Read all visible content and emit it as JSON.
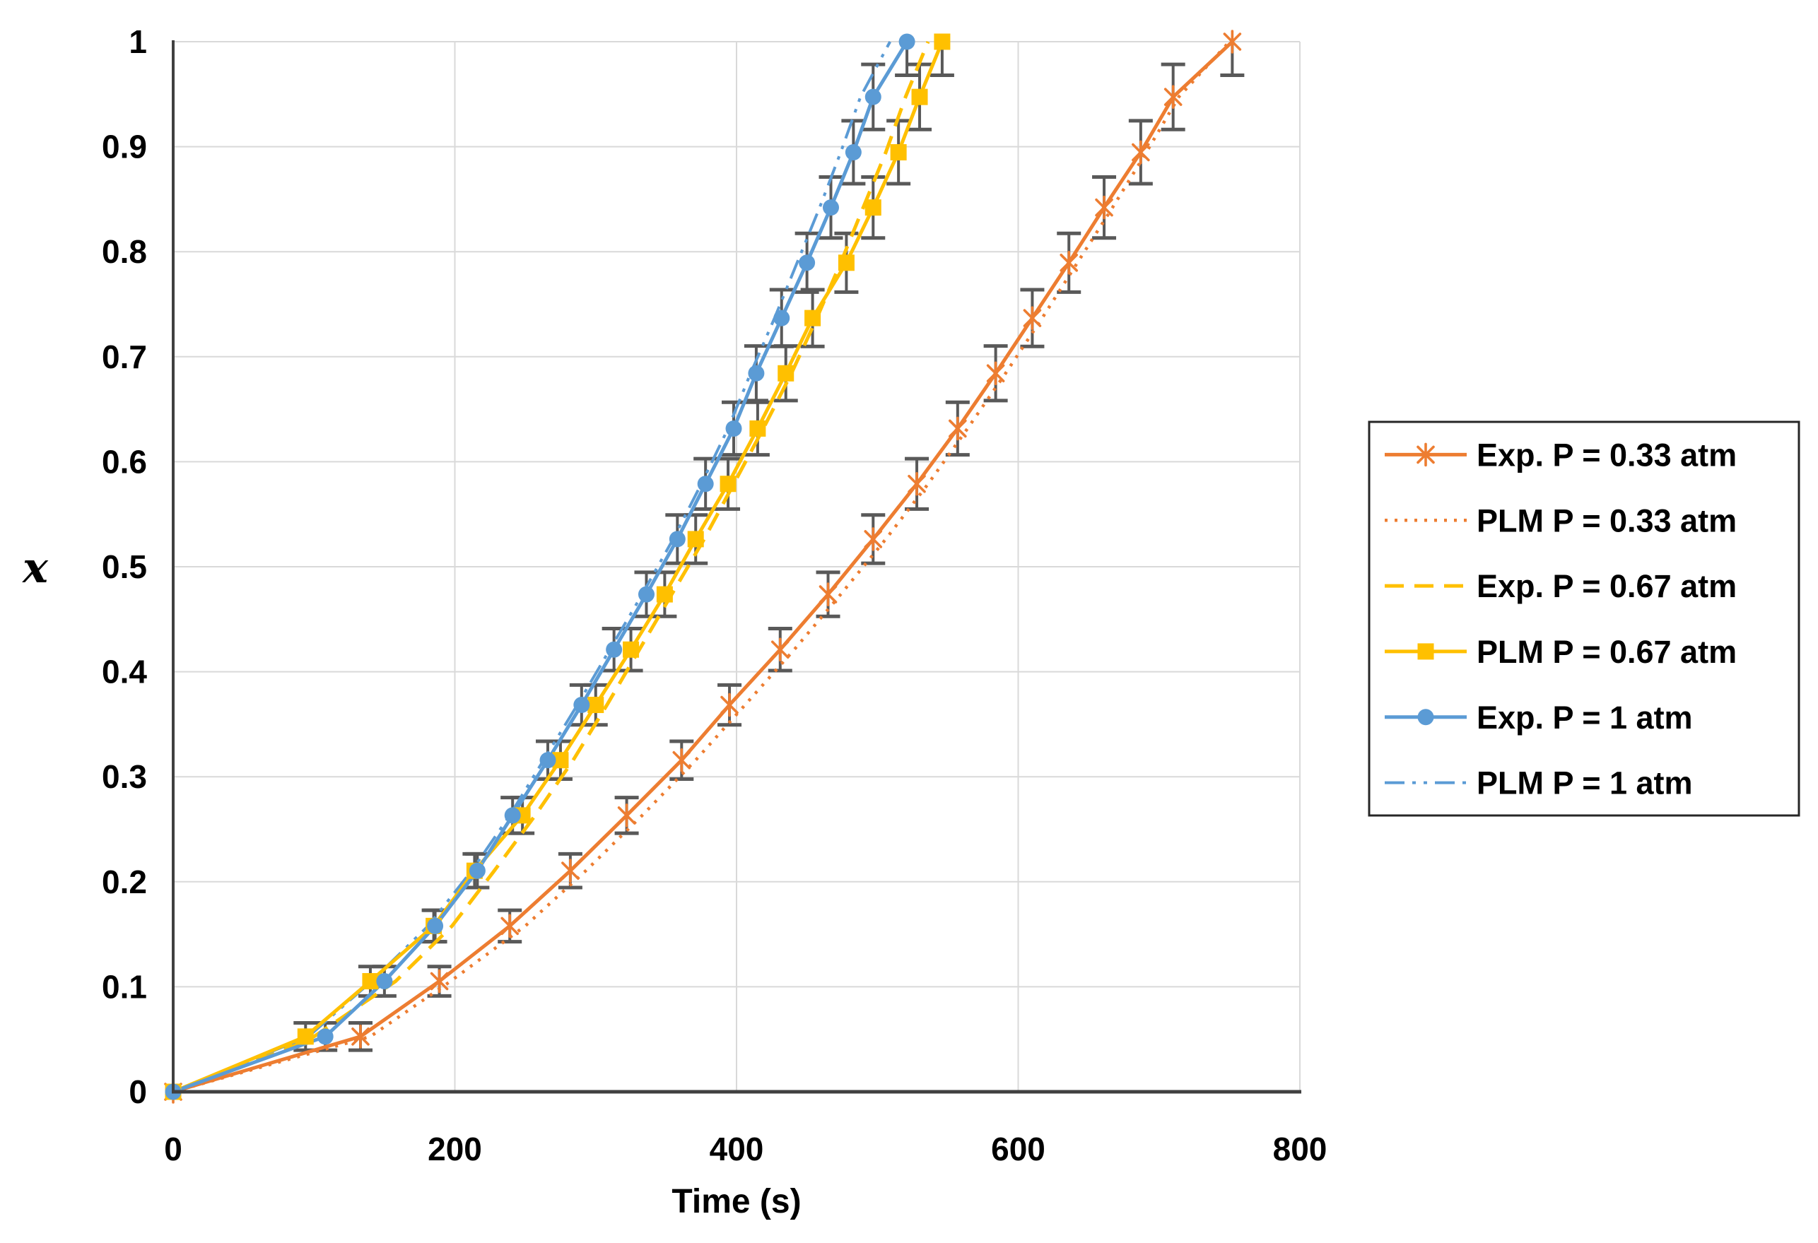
{
  "figure": {
    "background": "#ffffff",
    "x_axis_title": "Time (s)",
    "y_axis_title": "x",
    "x_tick_labels": [
      "0",
      "200",
      "400",
      "600",
      "800"
    ],
    "y_tick_labels": [
      "0",
      "0.1",
      "0.2",
      "0.3",
      "0.4",
      "0.5",
      "0.6",
      "0.7",
      "0.8",
      "0.9",
      "1"
    ]
  },
  "colors": {
    "orange": "#ED7D31",
    "gold": "#FFC000",
    "blue": "#5B9BD5",
    "error_bar": "#595959",
    "gridline": "#D9D9D9",
    "axis": "#404040",
    "text": "#000000",
    "legend_border": "#262626"
  },
  "chart_data": {
    "type": "line",
    "title": "",
    "xlabel": "Time (s)",
    "ylabel": "x",
    "xlim": [
      0,
      800
    ],
    "ylim": [
      0,
      1
    ],
    "x_ticks": [
      0,
      200,
      400,
      600,
      800
    ],
    "y_ticks": [
      0,
      0.1,
      0.2,
      0.3,
      0.4,
      0.5,
      0.6,
      0.7,
      0.8,
      0.9,
      1
    ],
    "grid": true,
    "legend_position": "outside-right",
    "conversion_levels": [
      0,
      0.0526,
      0.1053,
      0.1579,
      0.2105,
      0.2632,
      0.3158,
      0.3684,
      0.4211,
      0.4737,
      0.5263,
      0.5789,
      0.6316,
      0.6842,
      0.7368,
      0.7895,
      0.8421,
      0.8947,
      0.9474,
      1.0
    ],
    "error_bar_values": [
      0,
      0.013,
      0.014,
      0.015,
      0.016,
      0.017,
      0.018,
      0.019,
      0.02,
      0.021,
      0.023,
      0.024,
      0.025,
      0.026,
      0.027,
      0.028,
      0.029,
      0.03,
      0.031,
      0.032
    ],
    "series": [
      {
        "key": "exp033",
        "name": "Exp. P = 0.33 atm",
        "color": "#ED7D31",
        "line_style": "solid",
        "marker": "asterisk",
        "error_bars": true,
        "times_s": [
          0,
          133,
          189,
          239,
          282,
          322,
          361,
          395,
          431,
          465,
          497,
          528,
          557,
          584,
          610,
          636,
          661,
          687,
          710,
          752
        ]
      },
      {
        "key": "plm033",
        "name": "PLM P = 0.33 atm",
        "color": "#ED7D31",
        "line_style": "dotted",
        "marker": "none",
        "error_bars": false,
        "times_s": [
          0,
          140,
          197,
          250,
          293,
          333,
          371,
          406,
          441,
          474,
          506,
          536,
          564,
          591,
          617,
          642,
          667,
          691,
          714,
          750
        ]
      },
      {
        "key": "exp067",
        "name": "Exp. P = 0.67 atm",
        "color": "#FFC000",
        "line_style": "dashed",
        "marker": "none",
        "error_bars": false,
        "times_s": [
          0,
          100,
          158,
          198,
          228,
          257,
          284,
          308,
          331,
          354,
          377,
          398,
          419,
          439,
          457,
          474,
          490,
          506,
          520,
          536
        ]
      },
      {
        "key": "plm067",
        "name": "PLM P = 0.67 atm",
        "color": "#FFC000",
        "line_style": "solid",
        "marker": "square",
        "error_bars": true,
        "times_s": [
          0,
          94,
          140,
          185,
          214,
          248,
          275,
          300,
          325,
          349,
          371,
          394,
          415,
          435,
          454,
          478,
          497,
          515,
          530,
          546
        ]
      },
      {
        "key": "exp1",
        "name": "Exp. P = 1 atm",
        "color": "#5B9BD5",
        "line_style": "solid",
        "marker": "circle",
        "error_bars": true,
        "times_s": [
          0,
          108,
          150,
          186,
          216,
          241,
          266,
          290,
          313,
          336,
          358,
          378,
          398,
          414,
          432,
          450,
          467,
          483,
          497,
          521
        ]
      },
      {
        "key": "plm1",
        "name": "PLM P = 1 atm",
        "color": "#5B9BD5",
        "line_style": "dashdot",
        "marker": "none",
        "error_bars": false,
        "times_s": [
          0,
          96,
          141,
          181,
          212,
          239,
          263,
          287,
          310,
          333,
          355,
          375,
          394,
          410,
          427,
          443,
          459,
          474,
          488,
          509
        ]
      }
    ]
  }
}
